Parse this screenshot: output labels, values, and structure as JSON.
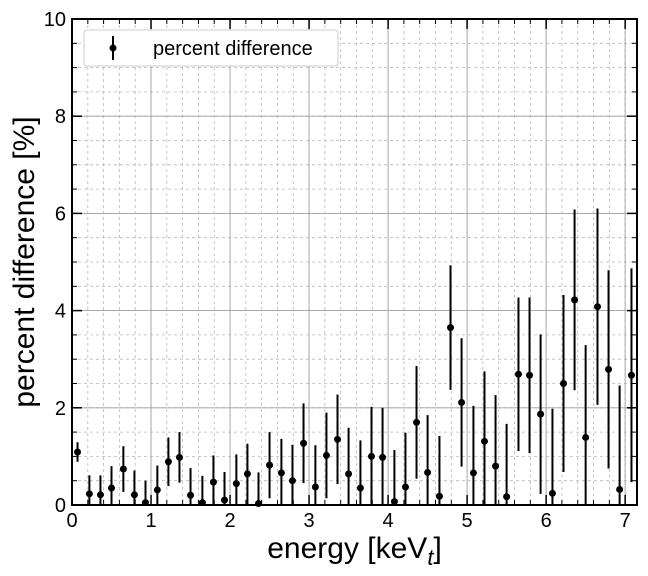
{
  "chart_data": {
    "type": "scatter",
    "xlabel": "energy [keV",
    "xlabel_subscript": "t",
    "xlabel_suffix": "]",
    "ylabel": "percent difference [%]",
    "xlim": [
      0,
      7.15
    ],
    "ylim": [
      0,
      10
    ],
    "x_ticks": [
      0,
      1,
      2,
      3,
      4,
      5,
      6,
      7
    ],
    "y_ticks": [
      0,
      2,
      4,
      6,
      8,
      10
    ],
    "grid": true,
    "legend_position": "top-left",
    "series": [
      {
        "name": "percent difference",
        "color": "#000000",
        "x": [
          0.07,
          0.22,
          0.36,
          0.5,
          0.65,
          0.79,
          0.93,
          1.08,
          1.22,
          1.36,
          1.5,
          1.65,
          1.79,
          1.93,
          2.08,
          2.22,
          2.36,
          2.5,
          2.65,
          2.79,
          2.93,
          3.08,
          3.22,
          3.36,
          3.5,
          3.65,
          3.79,
          3.93,
          4.08,
          4.22,
          4.36,
          4.5,
          4.65,
          4.79,
          4.93,
          5.08,
          5.22,
          5.36,
          5.5,
          5.65,
          5.79,
          5.93,
          6.08,
          6.22,
          6.36,
          6.5,
          6.65,
          6.79,
          6.93,
          7.08
        ],
        "y": [
          1.09,
          0.23,
          0.21,
          0.35,
          0.74,
          0.21,
          0.05,
          0.31,
          0.89,
          0.98,
          0.2,
          0.05,
          0.47,
          0.1,
          0.44,
          0.64,
          0.03,
          0.82,
          0.66,
          0.5,
          1.27,
          0.37,
          1.02,
          1.35,
          0.64,
          0.35,
          1.0,
          0.98,
          0.07,
          0.37,
          1.7,
          0.67,
          0.18,
          3.65,
          2.11,
          0.66,
          1.31,
          0.8,
          0.17,
          2.69,
          2.67,
          1.87,
          0.24,
          2.5,
          4.22,
          1.39,
          4.08,
          2.79,
          0.32,
          2.67
        ],
        "err": [
          0.2,
          0.38,
          0.4,
          0.45,
          0.47,
          0.5,
          0.45,
          0.5,
          0.5,
          0.52,
          0.56,
          0.55,
          0.55,
          0.58,
          0.6,
          0.62,
          0.64,
          0.68,
          0.7,
          0.74,
          0.82,
          0.86,
          0.88,
          0.92,
          0.95,
          0.98,
          1.02,
          1.02,
          1.06,
          1.12,
          1.16,
          1.18,
          1.24,
          1.28,
          1.32,
          1.38,
          1.44,
          1.46,
          1.5,
          1.58,
          1.6,
          1.64,
          1.74,
          1.82,
          1.86,
          1.9,
          2.02,
          2.04,
          2.14,
          2.2
        ]
      }
    ]
  }
}
